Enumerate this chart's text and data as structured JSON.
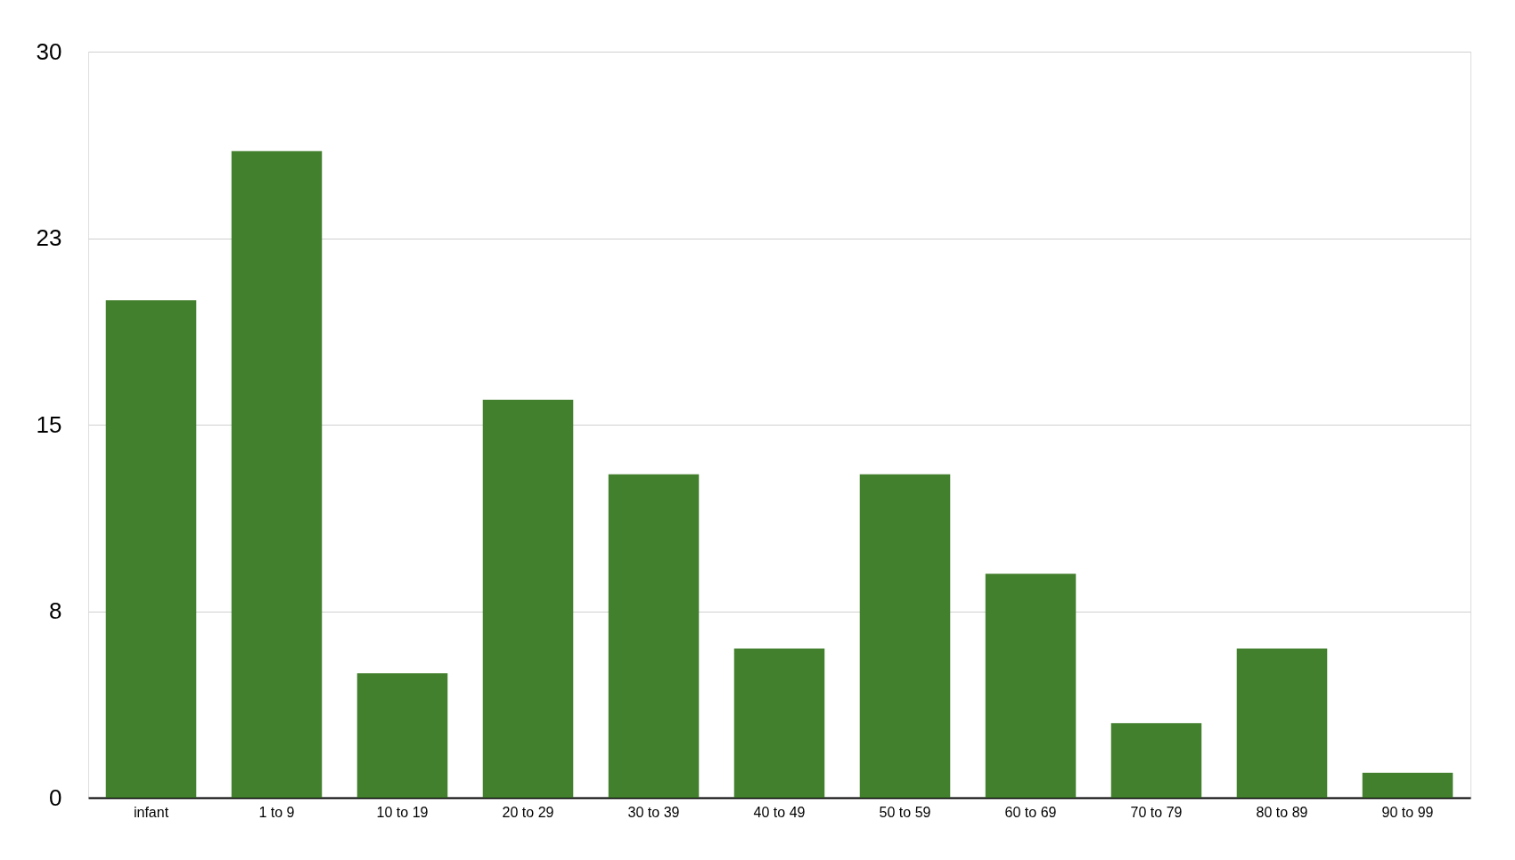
{
  "chart_data": {
    "type": "bar",
    "categories": [
      "infant",
      "1 to 9",
      "10 to 19",
      "20 to 29",
      "30 to 39",
      "40 to 49",
      "50 to 59",
      "60 to 69",
      "70 to 79",
      "80 to 89",
      "90 to 99"
    ],
    "values": [
      20,
      26,
      5,
      16,
      13,
      6,
      13,
      9,
      3,
      6,
      1
    ],
    "color": "#43802e",
    "ylim": [
      0,
      30
    ],
    "yticks": [
      0,
      {
        "value": 7.5,
        "label": "8"
      },
      15,
      {
        "value": 22.5,
        "label": "23"
      },
      30
    ],
    "grid": "y"
  }
}
